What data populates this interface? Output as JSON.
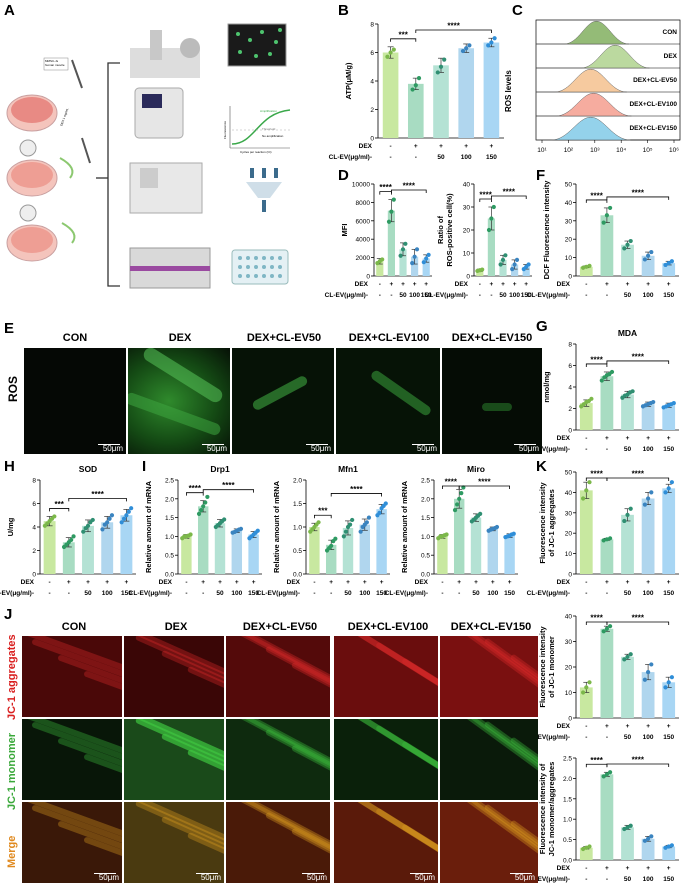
{
  "panel_labels": {
    "A": "A",
    "B": "B",
    "C": "C",
    "D": "D",
    "E": "E",
    "F": "F",
    "G": "G",
    "H": "H",
    "I": "I",
    "J": "J",
    "K": "K"
  },
  "colors": {
    "con": "#c8e8a0",
    "dex": "#a8dcc2",
    "ev50": "#b4e2d4",
    "ev100": "#b0d6ee",
    "ev150": "#a8d6f4",
    "con_dot": "#7cb84a",
    "dex_dot": "#2e9a62",
    "ev50_dot": "#2f8f72",
    "ev100_dot": "#3a84c0",
    "ev150_dot": "#2f8ed8"
  },
  "schematic": {
    "label_1": "MMSC-Js\nhuman muscle",
    "label_2": "DEX 1 mg/mL",
    "curve_labels": [
      "Amplification",
      "Threshold",
      "No amplification"
    ],
    "curve_xlabel": "Cycles per reaction (Ct)",
    "curve_ylabel": "Fluorescence"
  },
  "conditions": {
    "dex_label": "DEX",
    "clev_label": "CL-EV(μg/ml)-",
    "dex_row": [
      "-",
      "+",
      "+",
      "+",
      "+"
    ],
    "clev_row": [
      "-",
      "-",
      "50",
      "100",
      "150"
    ]
  },
  "micro_e": {
    "row_label": "ROS",
    "titles": [
      "CON",
      "DEX",
      "DEX+CL-EV50",
      "DEX+CL-EV100",
      "DEX+CL-EV150"
    ],
    "scale": "50μm"
  },
  "micro_j": {
    "titles": [
      "CON",
      "DEX",
      "DEX+CL-EV50",
      "DEX+CL-EV100",
      "DEX+CL-EV150"
    ],
    "rows": [
      "JC-1 aggregates",
      "JC-1 monomer",
      "Merge"
    ],
    "scale": "50μm"
  },
  "flow_c": {
    "ylabel": "ROS levels",
    "labels": [
      "CON",
      "DEX",
      "DEX+CL-EV50",
      "DEX+CL-EV100",
      "DEX+CL-EV150"
    ],
    "xticks": [
      "10¹",
      "10²",
      "10³",
      "10⁴",
      "10⁵",
      "10⁶"
    ]
  },
  "chart_data": [
    {
      "id": "B",
      "type": "bar",
      "title": "",
      "ylabel": "ATP(μM/g)",
      "ylim": [
        0,
        8
      ],
      "yticks": [
        0,
        2,
        4,
        6,
        8
      ],
      "values": [
        6.0,
        3.8,
        5.1,
        6.3,
        6.7
      ],
      "errors": [
        0.4,
        0.4,
        0.5,
        0.3,
        0.3
      ],
      "points": [
        [
          5.7,
          6.0,
          6.2
        ],
        [
          3.4,
          3.7,
          4.2
        ],
        [
          4.6,
          5.0,
          5.5
        ],
        [
          6.1,
          6.3,
          6.5
        ],
        [
          6.5,
          6.7,
          7.0
        ]
      ],
      "sig": [
        {
          "from": 0,
          "to": 1,
          "text": "***"
        },
        {
          "from": 1,
          "to": 4,
          "text": "****"
        }
      ]
    },
    {
      "id": "D1",
      "type": "bar",
      "title": "",
      "ylabel": "MFI",
      "ylim": [
        0,
        10000
      ],
      "yticks": [
        0,
        2000,
        4000,
        6000,
        8000,
        10000
      ],
      "values": [
        1600,
        7100,
        2900,
        2100,
        1900
      ],
      "errors": [
        300,
        1200,
        700,
        800,
        400
      ],
      "points": [
        [
          1400,
          1600,
          1800
        ],
        [
          5900,
          7000,
          8300
        ],
        [
          2200,
          2900,
          3500
        ],
        [
          1400,
          2100,
          2900
        ],
        [
          1500,
          1900,
          2300
        ]
      ],
      "sig": [
        {
          "from": 0,
          "to": 1,
          "text": "****"
        },
        {
          "from": 1,
          "to": 4,
          "text": "****"
        }
      ]
    },
    {
      "id": "D2",
      "type": "bar",
      "title": "",
      "ylabel": "Ratio of\nROS-positive cell(%)",
      "ylim": [
        0,
        40
      ],
      "yticks": [
        0,
        10,
        20,
        30,
        40
      ],
      "values": [
        2.5,
        25,
        7,
        5,
        4
      ],
      "errors": [
        0.5,
        5,
        2,
        2,
        1
      ],
      "points": [
        [
          2.2,
          2.5,
          2.8
        ],
        [
          20,
          25,
          30
        ],
        [
          5,
          7,
          9
        ],
        [
          3,
          5,
          7
        ],
        [
          3,
          4,
          5
        ]
      ],
      "sig": [
        {
          "from": 0,
          "to": 1,
          "text": "****"
        },
        {
          "from": 1,
          "to": 4,
          "text": "****"
        }
      ]
    },
    {
      "id": "F",
      "type": "bar",
      "title": "",
      "ylabel": "DCF Fluorescence intensity",
      "ylim": [
        0,
        50
      ],
      "yticks": [
        0,
        10,
        20,
        30,
        40,
        50
      ],
      "values": [
        5,
        33,
        17,
        11,
        7
      ],
      "errors": [
        0.5,
        4,
        2,
        2,
        1
      ],
      "points": [
        [
          4.5,
          5,
          5.5
        ],
        [
          29,
          33,
          37
        ],
        [
          15,
          17,
          19
        ],
        [
          9,
          11,
          13
        ],
        [
          6,
          7,
          8
        ]
      ],
      "sig": [
        {
          "from": 0,
          "to": 1,
          "text": "****"
        },
        {
          "from": 1,
          "to": 4,
          "text": "****"
        }
      ]
    },
    {
      "id": "G",
      "type": "bar",
      "title": "MDA",
      "ylabel": "nmol/mg",
      "ylim": [
        0,
        8
      ],
      "yticks": [
        0,
        2,
        4,
        6,
        8
      ],
      "values": [
        2.5,
        5.0,
        3.3,
        2.4,
        2.3
      ],
      "errors": [
        0.3,
        0.4,
        0.3,
        0.2,
        0.2
      ],
      "points": [
        [
          2.2,
          2.4,
          2.6,
          2.7,
          2.9
        ],
        [
          4.6,
          4.9,
          5.1,
          5.2,
          5.4
        ],
        [
          3.0,
          3.2,
          3.3,
          3.5,
          3.6
        ],
        [
          2.2,
          2.3,
          2.4,
          2.5,
          2.6
        ],
        [
          2.1,
          2.2,
          2.3,
          2.4,
          2.5
        ]
      ],
      "sig": [
        {
          "from": 0,
          "to": 1,
          "text": "****"
        },
        {
          "from": 1,
          "to": 4,
          "text": "****"
        }
      ]
    },
    {
      "id": "H",
      "type": "bar",
      "title": "SOD",
      "ylabel": "U/mg",
      "ylim": [
        0,
        8
      ],
      "yticks": [
        0,
        2,
        4,
        6,
        8
      ],
      "values": [
        4.5,
        2.7,
        4.1,
        4.4,
        5.0
      ],
      "errors": [
        0.4,
        0.4,
        0.5,
        0.5,
        0.5
      ],
      "points": [
        [
          4.1,
          4.3,
          4.5,
          4.7,
          4.9
        ],
        [
          2.3,
          2.5,
          2.7,
          2.9,
          3.2
        ],
        [
          3.6,
          3.9,
          4.1,
          4.4,
          4.6
        ],
        [
          3.8,
          4.2,
          4.4,
          4.7,
          5.0
        ],
        [
          4.4,
          4.7,
          5.0,
          5.3,
          5.6
        ]
      ],
      "sig": [
        {
          "from": 0,
          "to": 1,
          "text": "***"
        },
        {
          "from": 1,
          "to": 4,
          "text": "****"
        }
      ]
    },
    {
      "id": "I1",
      "type": "bar",
      "title": "Drp1",
      "ylabel": "Relative amount of mRNA",
      "ylim": [
        0,
        2.5
      ],
      "yticks": [
        0,
        0.5,
        1.0,
        1.5,
        2.0,
        2.5
      ],
      "values": [
        1.0,
        1.8,
        1.35,
        1.15,
        1.05
      ],
      "errors": [
        0.05,
        0.15,
        0.1,
        0.05,
        0.08
      ],
      "points": [
        [
          0.95,
          1.0,
          1.0,
          1.02,
          1.05
        ],
        [
          1.6,
          1.7,
          1.8,
          1.9,
          2.05
        ],
        [
          1.25,
          1.3,
          1.35,
          1.4,
          1.45
        ],
        [
          1.1,
          1.12,
          1.15,
          1.18,
          1.2
        ],
        [
          0.95,
          1.0,
          1.05,
          1.1,
          1.15
        ]
      ],
      "sig": [
        {
          "from": 0,
          "to": 1,
          "text": "****"
        },
        {
          "from": 1,
          "to": 4,
          "text": "****"
        }
      ]
    },
    {
      "id": "I2",
      "type": "bar",
      "title": "Mfn1",
      "ylabel": "Relative amount of mRNA",
      "ylim": [
        0,
        2.0
      ],
      "yticks": [
        0,
        0.5,
        1.0,
        1.5,
        2.0
      ],
      "values": [
        1.0,
        0.62,
        0.98,
        1.05,
        1.38
      ],
      "errors": [
        0.08,
        0.1,
        0.15,
        0.12,
        0.1
      ],
      "points": [
        [
          0.9,
          0.95,
          1.0,
          1.05,
          1.1
        ],
        [
          0.5,
          0.55,
          0.6,
          0.7,
          0.75
        ],
        [
          0.8,
          0.9,
          1.0,
          1.05,
          1.15
        ],
        [
          0.9,
          1.0,
          1.05,
          1.1,
          1.2
        ],
        [
          1.25,
          1.3,
          1.4,
          1.45,
          1.5
        ]
      ],
      "sig": [
        {
          "from": 0,
          "to": 1,
          "text": "***"
        },
        {
          "from": 1,
          "to": 4,
          "text": "****"
        }
      ]
    },
    {
      "id": "I3",
      "type": "bar",
      "title": "Miro",
      "ylabel": "Relative amount of mRNA",
      "ylim": [
        0,
        2.5
      ],
      "yticks": [
        0,
        0.5,
        1.0,
        1.5,
        2.0,
        2.5
      ],
      "values": [
        1.0,
        2.0,
        1.5,
        1.2,
        1.02
      ],
      "errors": [
        0.05,
        0.25,
        0.1,
        0.05,
        0.05
      ],
      "points": [
        [
          0.95,
          1.0,
          1.0,
          1.03,
          1.05
        ],
        [
          1.7,
          1.85,
          2.0,
          2.15,
          2.3
        ],
        [
          1.4,
          1.45,
          1.5,
          1.55,
          1.6
        ],
        [
          1.15,
          1.18,
          1.2,
          1.22,
          1.25
        ],
        [
          0.98,
          1.0,
          1.02,
          1.05,
          1.07
        ]
      ],
      "sig": [
        {
          "from": 0,
          "to": 1,
          "text": "****"
        },
        {
          "from": 1,
          "to": 4,
          "text": "****"
        }
      ]
    },
    {
      "id": "K1",
      "type": "bar",
      "title": "",
      "ylabel": "Fluorescence intensity\nof JC-1 aggregates",
      "ylim": [
        0,
        50
      ],
      "yticks": [
        0,
        10,
        20,
        30,
        40,
        50
      ],
      "values": [
        41,
        17,
        29,
        37,
        42
      ],
      "errors": [
        4,
        0.5,
        3,
        3,
        2
      ],
      "points": [
        [
          37,
          41,
          45
        ],
        [
          16.5,
          17,
          17.5
        ],
        [
          26,
          29,
          32
        ],
        [
          34,
          37,
          40
        ],
        [
          40,
          42,
          45
        ]
      ],
      "sig": [
        {
          "from": 0,
          "to": 1,
          "text": "****"
        },
        {
          "from": 1,
          "to": 4,
          "text": "****"
        }
      ]
    },
    {
      "id": "K2",
      "type": "bar",
      "title": "",
      "ylabel": "Fluorescence intensity\nof JC-1 monomer",
      "ylim": [
        0,
        40
      ],
      "yticks": [
        0,
        10,
        20,
        30,
        40
      ],
      "values": [
        12,
        35,
        24,
        18,
        14
      ],
      "errors": [
        2,
        1,
        1,
        3,
        2
      ],
      "points": [
        [
          10,
          12,
          14
        ],
        [
          34,
          35,
          36
        ],
        [
          23,
          24,
          25
        ],
        [
          15,
          18,
          21
        ],
        [
          12,
          14,
          16
        ]
      ],
      "sig": [
        {
          "from": 0,
          "to": 1,
          "text": "****"
        },
        {
          "from": 1,
          "to": 4,
          "text": "****"
        }
      ]
    },
    {
      "id": "K3",
      "type": "bar",
      "title": "",
      "ylabel": "Fluorescence intensity of\nJC-1 monomer/aggregates",
      "ylim": [
        0,
        2.5
      ],
      "yticks": [
        0,
        0.5,
        1.0,
        1.5,
        2.0,
        2.5
      ],
      "values": [
        0.3,
        2.1,
        0.8,
        0.52,
        0.33
      ],
      "errors": [
        0.03,
        0.05,
        0.05,
        0.06,
        0.03
      ],
      "points": [
        [
          0.27,
          0.3,
          0.33
        ],
        [
          2.05,
          2.1,
          2.15
        ],
        [
          0.76,
          0.8,
          0.84
        ],
        [
          0.47,
          0.52,
          0.58
        ],
        [
          0.3,
          0.33,
          0.36
        ]
      ],
      "sig": [
        {
          "from": 0,
          "to": 1,
          "text": "****"
        },
        {
          "from": 1,
          "to": 4,
          "text": "****"
        }
      ]
    }
  ]
}
